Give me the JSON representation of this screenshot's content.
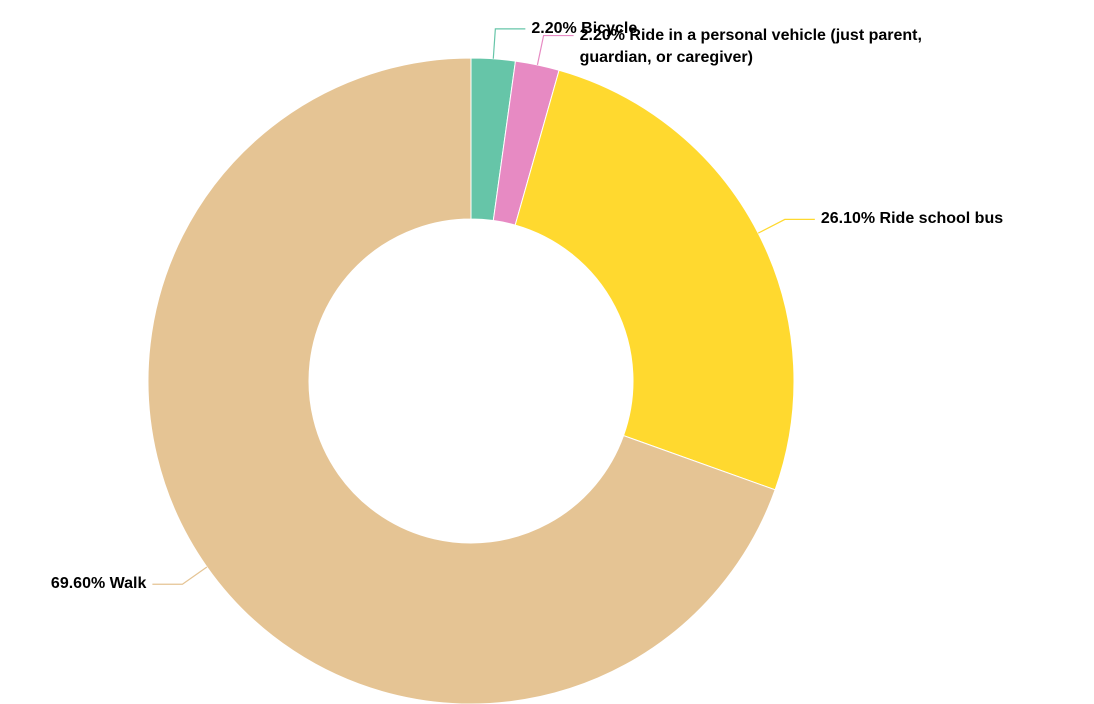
{
  "chart_data": {
    "type": "donut",
    "categories": [
      "Bicycle",
      "Ride in a personal vehicle (just parent, guardian, or caregiver)",
      "Ride school bus",
      "Walk"
    ],
    "values": [
      2.2,
      2.2,
      26.1,
      69.6
    ],
    "value_labels": [
      "2.20%",
      "2.20%",
      "26.10%",
      "69.60%"
    ],
    "colors": [
      "#66c5a8",
      "#e78ac3",
      "#ffd92f",
      "#e5c494"
    ]
  }
}
